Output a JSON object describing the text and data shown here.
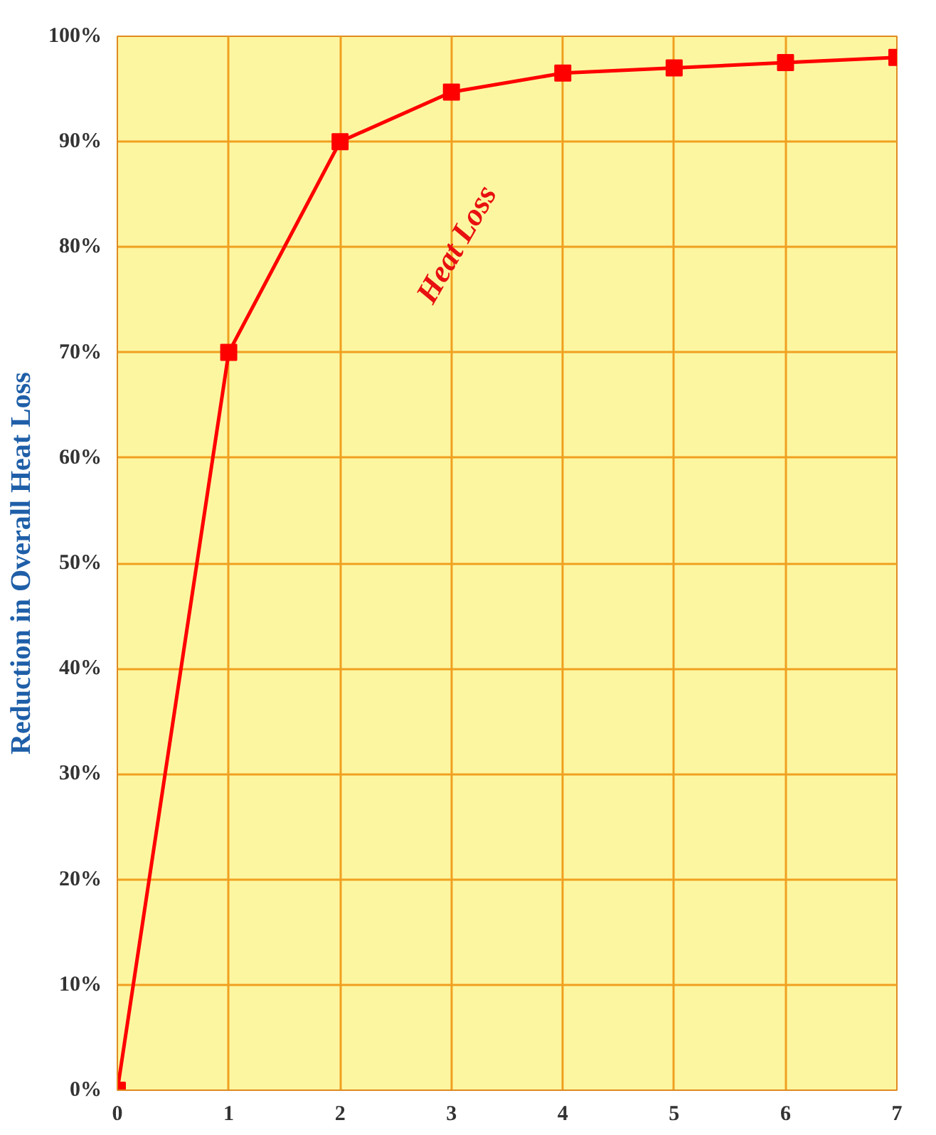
{
  "chart_data": {
    "type": "line",
    "ylabel": "Reduction in Overall Heat Loss",
    "x": [
      0,
      1,
      2,
      3,
      4,
      5,
      6,
      7
    ],
    "series": [
      {
        "color": "#ff0000",
        "values": [
          0,
          70,
          90,
          94.7,
          96.5,
          97,
          97.5,
          98
        ]
      }
    ],
    "xlim": [
      0,
      7
    ],
    "ylim": [
      0,
      100
    ],
    "xticks": [
      0,
      1,
      2,
      3,
      4,
      5,
      6,
      7
    ],
    "yticks": [
      {
        "value": 0,
        "label": "0%"
      },
      {
        "value": 10,
        "label": "10%"
      },
      {
        "value": 20,
        "label": "20%"
      },
      {
        "value": 30,
        "label": "30%"
      },
      {
        "value": 40,
        "label": "40%"
      },
      {
        "value": 50,
        "label": "50%"
      },
      {
        "value": 60,
        "label": "60%"
      },
      {
        "value": 70,
        "label": "70%"
      },
      {
        "value": 80,
        "label": "80%"
      },
      {
        "value": 90,
        "label": "90%"
      },
      {
        "value": 100,
        "label": "100%"
      }
    ],
    "annotations": [
      "Heat Loss"
    ],
    "grid": true,
    "marker": "square",
    "line_style": "solid"
  }
}
